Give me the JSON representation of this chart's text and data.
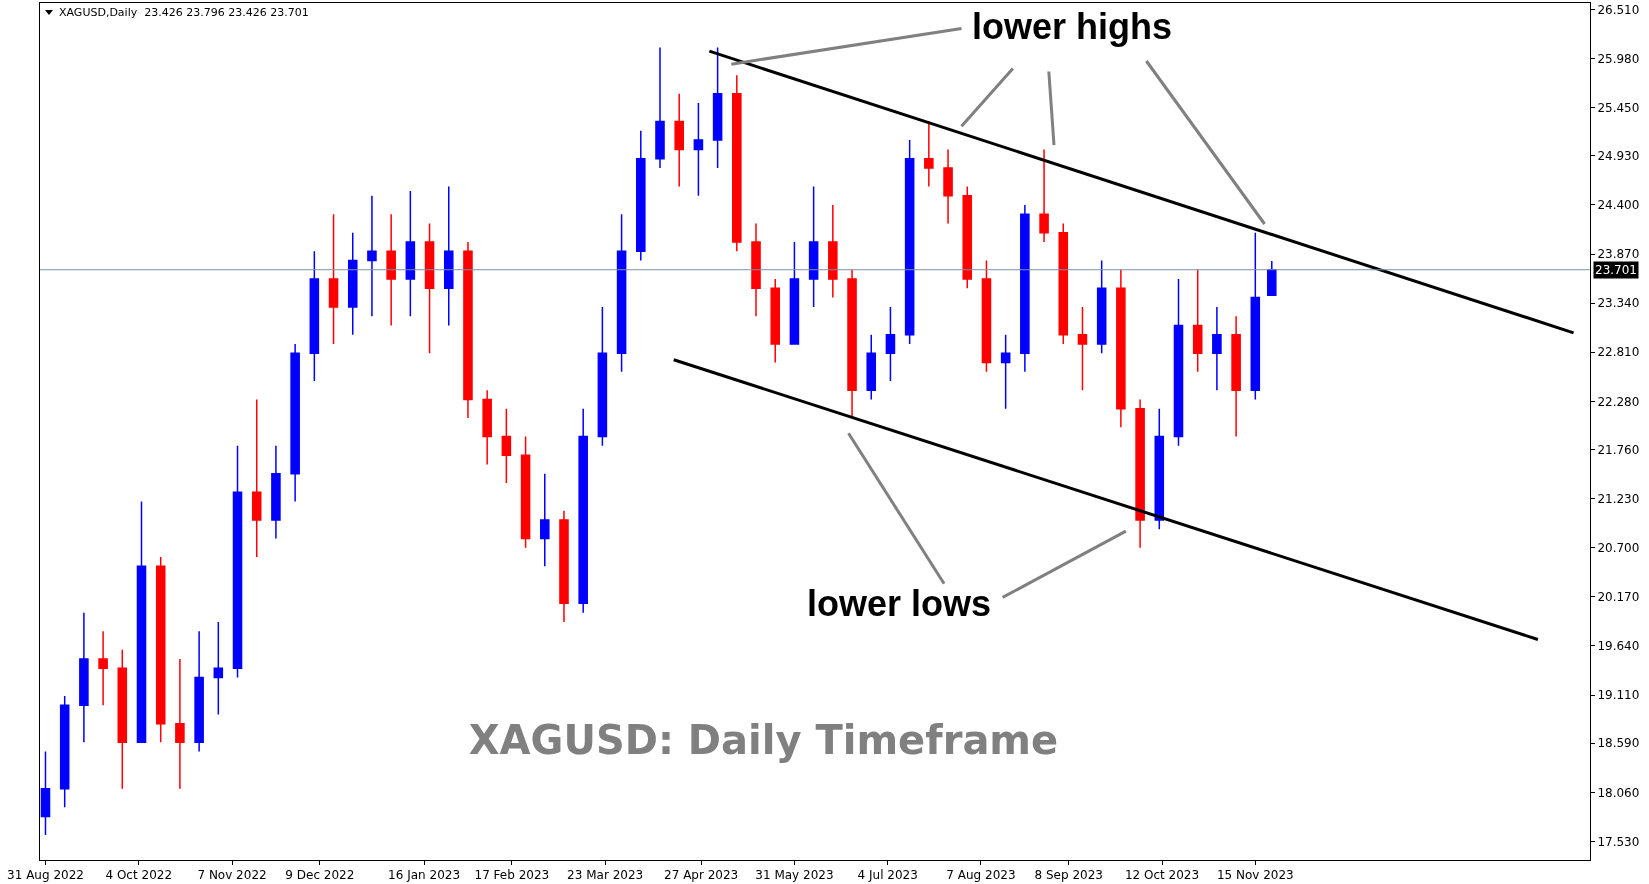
{
  "chart_data": {
    "type": "candlestick",
    "title": "XAGUSD: Daily Timeframe",
    "subtitle": "XAGUSD,Daily  23.426 23.796 23.426 23.701",
    "annotations": [
      {
        "text": "lower highs",
        "x": "2023-05-08",
        "y": 25.92
      },
      "lower lows"
    ],
    "x": [
      "2022-08-31",
      "2022-09-07",
      "2022-09-14",
      "2022-09-21",
      "2022-09-28",
      "2022-10-05",
      "2022-10-12",
      "2022-10-19",
      "2022-10-26",
      "2022-11-02",
      "2022-11-09",
      "2022-11-16",
      "2022-11-23",
      "2022-11-30",
      "2022-12-07",
      "2022-12-14",
      "2022-12-21",
      "2022-12-28",
      "2023-01-04",
      "2023-01-11",
      "2023-01-18",
      "2023-01-25",
      "2023-02-01",
      "2023-02-08",
      "2023-02-15",
      "2023-02-22",
      "2023-03-01",
      "2023-03-08",
      "2023-03-15",
      "2023-03-22",
      "2023-03-29",
      "2023-04-05",
      "2023-04-12",
      "2023-04-19",
      "2023-04-26",
      "2023-05-03",
      "2023-05-10",
      "2023-05-17",
      "2023-05-24",
      "2023-05-31",
      "2023-06-07",
      "2023-06-14",
      "2023-06-21",
      "2023-06-28",
      "2023-07-05",
      "2023-07-12",
      "2023-07-19",
      "2023-07-26",
      "2023-08-02",
      "2023-08-09",
      "2023-08-16",
      "2023-08-23",
      "2023-08-30",
      "2023-09-06",
      "2023-09-13",
      "2023-09-20",
      "2023-09-27",
      "2023-10-04",
      "2023-10-11",
      "2023-10-18",
      "2023-10-25",
      "2023-11-01",
      "2023-11-08",
      "2023-11-15",
      "2023-11-21"
    ],
    "ohlc": [
      [
        17.8,
        18.5,
        17.6,
        18.1
      ],
      [
        18.1,
        19.1,
        17.9,
        19.0
      ],
      [
        19.0,
        20.0,
        18.6,
        19.5
      ],
      [
        19.5,
        19.8,
        19.0,
        19.4
      ],
      [
        19.4,
        19.6,
        18.1,
        18.6
      ],
      [
        18.6,
        21.2,
        18.6,
        20.5
      ],
      [
        20.5,
        20.6,
        18.6,
        18.8
      ],
      [
        18.8,
        19.5,
        18.1,
        18.6
      ],
      [
        18.6,
        19.8,
        18.5,
        19.3
      ],
      [
        19.3,
        19.9,
        18.9,
        19.4
      ],
      [
        19.4,
        21.8,
        19.3,
        21.3
      ],
      [
        21.3,
        22.3,
        20.6,
        21.0
      ],
      [
        21.0,
        21.8,
        20.8,
        21.5
      ],
      [
        21.5,
        22.9,
        21.2,
        22.8
      ],
      [
        22.8,
        23.9,
        22.5,
        23.6
      ],
      [
        23.6,
        24.3,
        22.9,
        23.3
      ],
      [
        23.3,
        24.1,
        23.0,
        23.8
      ],
      [
        23.8,
        24.5,
        23.2,
        23.9
      ],
      [
        23.9,
        24.3,
        23.1,
        23.6
      ],
      [
        23.6,
        24.55,
        23.2,
        24.0
      ],
      [
        24.0,
        24.2,
        22.8,
        23.5
      ],
      [
        23.5,
        24.6,
        23.1,
        23.9
      ],
      [
        23.9,
        24.0,
        22.1,
        22.3
      ],
      [
        22.3,
        22.4,
        21.6,
        21.9
      ],
      [
        21.9,
        22.2,
        21.4,
        21.7
      ],
      [
        21.7,
        21.9,
        20.7,
        20.8
      ],
      [
        20.8,
        21.5,
        20.5,
        21.0
      ],
      [
        21.0,
        21.1,
        19.9,
        20.1
      ],
      [
        20.1,
        22.2,
        20.0,
        21.9
      ],
      [
        21.9,
        23.3,
        21.8,
        22.8
      ],
      [
        22.8,
        24.3,
        22.6,
        23.9
      ],
      [
        23.9,
        25.2,
        23.8,
        24.9
      ],
      [
        24.9,
        26.1,
        24.8,
        25.3
      ],
      [
        25.3,
        25.6,
        24.6,
        25.0
      ],
      [
        25.0,
        25.5,
        24.5,
        25.1
      ],
      [
        25.1,
        26.1,
        24.8,
        25.6
      ],
      [
        25.6,
        25.8,
        23.9,
        24.0
      ],
      [
        24.0,
        24.2,
        23.2,
        23.5
      ],
      [
        23.5,
        23.6,
        22.7,
        22.9
      ],
      [
        22.9,
        24.0,
        22.9,
        23.6
      ],
      [
        23.6,
        24.6,
        23.3,
        24.0
      ],
      [
        24.0,
        24.4,
        23.4,
        23.6
      ],
      [
        23.6,
        23.7,
        22.1,
        22.4
      ],
      [
        22.4,
        23.0,
        22.3,
        22.8
      ],
      [
        22.8,
        23.3,
        22.5,
        23.0
      ],
      [
        23.0,
        25.1,
        22.9,
        24.9
      ],
      [
        24.9,
        25.3,
        24.6,
        24.8
      ],
      [
        24.8,
        25.0,
        24.2,
        24.5
      ],
      [
        24.5,
        24.6,
        23.5,
        23.6
      ],
      [
        23.6,
        23.8,
        22.6,
        22.7
      ],
      [
        22.7,
        23.0,
        22.2,
        22.8
      ],
      [
        22.8,
        24.4,
        22.6,
        24.3
      ],
      [
        24.3,
        25.0,
        24.0,
        24.1
      ],
      [
        24.1,
        24.2,
        22.9,
        23.0
      ],
      [
        23.0,
        23.3,
        22.4,
        22.9
      ],
      [
        22.9,
        23.8,
        22.8,
        23.5
      ],
      [
        23.5,
        23.7,
        22.0,
        22.2
      ],
      [
        22.2,
        22.3,
        20.7,
        21.0
      ],
      [
        21.0,
        22.2,
        20.9,
        21.9
      ],
      [
        21.9,
        23.6,
        21.8,
        23.1
      ],
      [
        23.1,
        23.7,
        22.6,
        22.8
      ],
      [
        22.8,
        23.3,
        22.4,
        23.0
      ],
      [
        23.0,
        23.2,
        21.9,
        22.4
      ],
      [
        22.4,
        24.1,
        22.3,
        23.4
      ],
      [
        23.426,
        23.796,
        23.426,
        23.701
      ]
    ],
    "colors": [
      "#0000ff",
      "#0000ff",
      "#0000ff",
      "#ff0000",
      "#ff0000",
      "#0000ff",
      "#ff0000",
      "#ff0000",
      "#0000ff",
      "#0000ff",
      "#0000ff",
      "#ff0000",
      "#0000ff",
      "#0000ff",
      "#0000ff",
      "#ff0000",
      "#0000ff",
      "#0000ff",
      "#ff0000",
      "#0000ff",
      "#ff0000",
      "#0000ff",
      "#ff0000",
      "#ff0000",
      "#ff0000",
      "#ff0000",
      "#0000ff",
      "#ff0000",
      "#0000ff",
      "#0000ff",
      "#0000ff",
      "#0000ff",
      "#0000ff",
      "#ff0000",
      "#0000ff",
      "#0000ff",
      "#ff0000",
      "#ff0000",
      "#ff0000",
      "#0000ff",
      "#0000ff",
      "#ff0000",
      "#ff0000",
      "#0000ff",
      "#0000ff",
      "#0000ff",
      "#ff0000",
      "#ff0000",
      "#ff0000",
      "#ff0000",
      "#0000ff",
      "#0000ff",
      "#ff0000",
      "#ff0000",
      "#ff0000",
      "#0000ff",
      "#ff0000",
      "#ff0000",
      "#0000ff",
      "#0000ff",
      "#ff0000",
      "#0000ff",
      "#ff0000",
      "#0000ff",
      "#0000ff"
    ],
    "series": [
      {
        "type": "line",
        "color": "#000000",
        "x": [
          "2023-04-30",
          "2024-03-10"
        ],
        "values": [
          26.06,
          23.02
        ]
      },
      {
        "type": "line",
        "color": "#000000",
        "x": [
          "2023-04-17",
          "2024-02-26"
        ],
        "values": [
          22.73,
          19.71
        ]
      }
    ],
    "ref_lines": [
      {
        "axis": "y",
        "value": 23.701,
        "label": "23.701",
        "color": "#7b8faa"
      }
    ],
    "xlim": [
      "2022-08-29",
      "2024-03-16"
    ],
    "xticks": [
      {
        "value": "2022-08-31",
        "label": "31 Aug 2022"
      },
      {
        "value": "2022-10-04",
        "label": "4 Oct 2022"
      },
      {
        "value": "2022-11-07",
        "label": "7 Nov 2022"
      },
      {
        "value": "2022-12-09",
        "label": "9 Dec 2022"
      },
      {
        "value": "2023-01-16",
        "label": "16 Jan 2023"
      },
      {
        "value": "2023-02-17",
        "label": "17 Feb 2023"
      },
      {
        "value": "2023-03-23",
        "label": "23 Mar 2023"
      },
      {
        "value": "2023-04-27",
        "label": "27 Apr 2023"
      },
      {
        "value": "2023-05-31",
        "label": "31 May 2023"
      },
      {
        "value": "2023-07-04",
        "label": "4 Jul 2023"
      },
      {
        "value": "2023-08-07",
        "label": "7 Aug 2023"
      },
      {
        "value": "2023-09-08",
        "label": "8 Sep 2023"
      },
      {
        "value": "2023-10-12",
        "label": "12 Oct 2023"
      },
      {
        "value": "2023-11-15",
        "label": "15 Nov 2023"
      }
    ],
    "ylim": [
      17.33,
      26.58
    ],
    "yticks": [
      {
        "value": 17.53,
        "label": "17.530"
      },
      {
        "value": 18.06,
        "label": "18.060"
      },
      {
        "value": 18.59,
        "label": "18.590"
      },
      {
        "value": 19.11,
        "label": "19.110"
      },
      {
        "value": 19.64,
        "label": "19.640"
      },
      {
        "value": 20.17,
        "label": "20.170"
      },
      {
        "value": 20.7,
        "label": "20.700"
      },
      {
        "value": 21.23,
        "label": "21.230"
      },
      {
        "value": 21.76,
        "label": "21.760"
      },
      {
        "value": 22.28,
        "label": "22.280"
      },
      {
        "value": 22.81,
        "label": "22.810"
      },
      {
        "value": 23.34,
        "label": "23.340"
      },
      {
        "value": 23.87,
        "label": "23.870"
      },
      {
        "value": 24.4,
        "label": "24.400"
      },
      {
        "value": 24.93,
        "label": "24.930"
      },
      {
        "value": 25.45,
        "label": "25.450"
      },
      {
        "value": 25.98,
        "label": "25.980"
      },
      {
        "value": 26.51,
        "label": "26.510"
      }
    ],
    "grid": false,
    "legend": false
  }
}
